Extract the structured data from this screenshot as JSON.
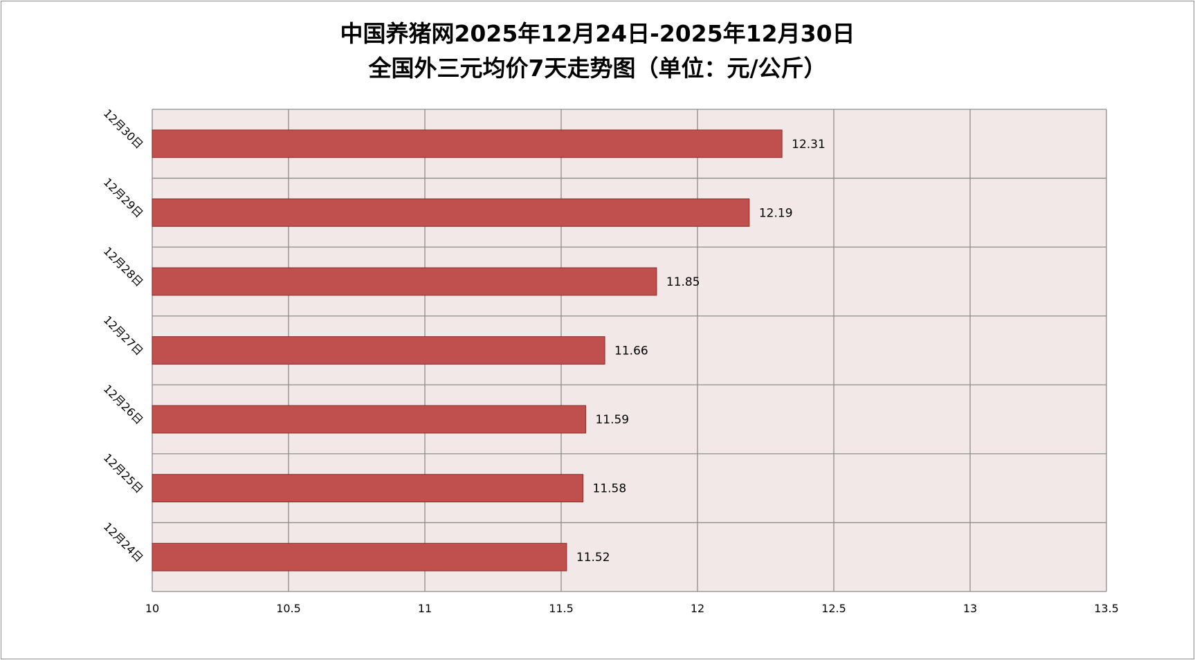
{
  "chart_data": {
    "type": "bar",
    "orientation": "horizontal",
    "title": "中国养猪网2025年12月24日-2025年12月30日",
    "subtitle": "全国外三元均价7天走势图（单位：元/公斤）",
    "categories": [
      "12月24日",
      "12月25日",
      "12月26日",
      "12月27日",
      "12月28日",
      "12月29日",
      "12月30日"
    ],
    "values": [
      11.52,
      11.58,
      11.59,
      11.66,
      11.85,
      12.19,
      12.31
    ],
    "value_labels": [
      "11.52",
      "11.58",
      "11.59",
      "11.66",
      "11.85",
      "12.19",
      "12.31"
    ],
    "xlim": [
      10,
      13.5
    ],
    "x_ticks": [
      10,
      10.5,
      11,
      11.5,
      12,
      12.5,
      13,
      13.5
    ],
    "x_tick_labels": [
      "10",
      "10.5",
      "11",
      "11.5",
      "12",
      "12.5",
      "13",
      "13.5"
    ],
    "xlabel": "",
    "ylabel": "",
    "grid": true,
    "legend": "none",
    "colors": {
      "bar_fill": "#c0504d",
      "bar_stroke": "#8b2a28",
      "plot_background": "#f2e8e8",
      "gridline": "#8c8c8c",
      "frame_border": "#8c8c8c"
    }
  }
}
